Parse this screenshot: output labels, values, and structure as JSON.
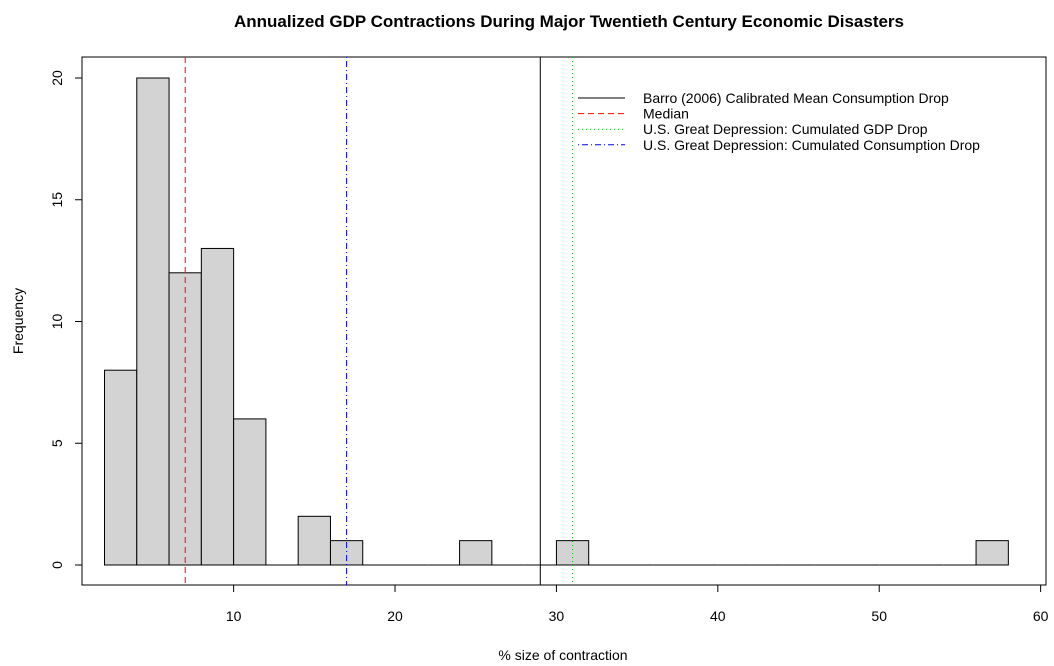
{
  "chart_data": {
    "type": "bar",
    "title": "Annualized GDP Contractions During Major Twentieth Century Economic Disasters",
    "xlabel": "% size of contraction",
    "ylabel": "Frequency",
    "xlim": [
      2,
      60
    ],
    "ylim": [
      0,
      20
    ],
    "x_ticks": [
      10,
      20,
      30,
      40,
      50,
      60
    ],
    "y_ticks": [
      0,
      5,
      10,
      15,
      20
    ],
    "bins": [
      {
        "from": 2,
        "to": 4,
        "count": 8
      },
      {
        "from": 4,
        "to": 6,
        "count": 20
      },
      {
        "from": 6,
        "to": 8,
        "count": 12
      },
      {
        "from": 8,
        "to": 10,
        "count": 13
      },
      {
        "from": 10,
        "to": 12,
        "count": 6
      },
      {
        "from": 12,
        "to": 14,
        "count": 0
      },
      {
        "from": 14,
        "to": 16,
        "count": 2
      },
      {
        "from": 16,
        "to": 18,
        "count": 1
      },
      {
        "from": 18,
        "to": 20,
        "count": 0
      },
      {
        "from": 20,
        "to": 22,
        "count": 0
      },
      {
        "from": 22,
        "to": 24,
        "count": 0
      },
      {
        "from": 24,
        "to": 26,
        "count": 1
      },
      {
        "from": 26,
        "to": 28,
        "count": 0
      },
      {
        "from": 28,
        "to": 30,
        "count": 0
      },
      {
        "from": 30,
        "to": 32,
        "count": 1
      },
      {
        "from": 32,
        "to": 34,
        "count": 0
      },
      {
        "from": 34,
        "to": 36,
        "count": 0
      },
      {
        "from": 36,
        "to": 38,
        "count": 0
      },
      {
        "from": 38,
        "to": 40,
        "count": 0
      },
      {
        "from": 40,
        "to": 42,
        "count": 0
      },
      {
        "from": 42,
        "to": 44,
        "count": 0
      },
      {
        "from": 44,
        "to": 46,
        "count": 0
      },
      {
        "from": 46,
        "to": 48,
        "count": 0
      },
      {
        "from": 48,
        "to": 50,
        "count": 0
      },
      {
        "from": 50,
        "to": 52,
        "count": 0
      },
      {
        "from": 52,
        "to": 54,
        "count": 0
      },
      {
        "from": 54,
        "to": 56,
        "count": 0
      },
      {
        "from": 56,
        "to": 58,
        "count": 1
      }
    ],
    "bar_fill": "#d3d3d3",
    "reference_lines": [
      {
        "name": "Barro (2006) Calibrated Mean Consumption Drop",
        "x": 29,
        "color": "#000000",
        "style": "solid"
      },
      {
        "name": "Median",
        "x": 7,
        "color": "#ff0000",
        "style": "dashed"
      },
      {
        "name": "U.S. Great Depression: Cumulated GDP Drop",
        "x": 31,
        "color": "#00cd00",
        "style": "dotted"
      },
      {
        "name": "U.S. Great Depression: Cumulated Consumption Drop",
        "x": 17,
        "color": "#0000ff",
        "style": "dotdash"
      }
    ],
    "legend_position": "top-right",
    "grid": false
  }
}
